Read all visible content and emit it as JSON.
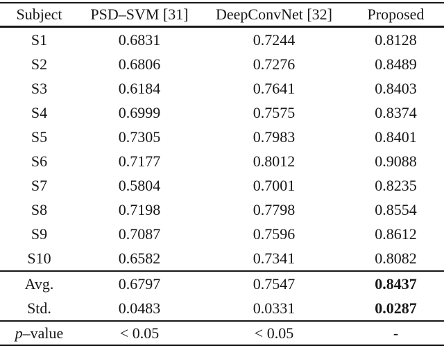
{
  "table": {
    "columns": [
      "Subject",
      "PSD–SVM [31]",
      "DeepConvNet [32]",
      "Proposed"
    ],
    "rows": [
      {
        "subject": "S1",
        "psd_svm": "0.6831",
        "deepconvnet": "0.7244",
        "proposed": "0.8128"
      },
      {
        "subject": "S2",
        "psd_svm": "0.6806",
        "deepconvnet": "0.7276",
        "proposed": "0.8489"
      },
      {
        "subject": "S3",
        "psd_svm": "0.6184",
        "deepconvnet": "0.7641",
        "proposed": "0.8403"
      },
      {
        "subject": "S4",
        "psd_svm": "0.6999",
        "deepconvnet": "0.7575",
        "proposed": "0.8374"
      },
      {
        "subject": "S5",
        "psd_svm": "0.7305",
        "deepconvnet": "0.7983",
        "proposed": "0.8401"
      },
      {
        "subject": "S6",
        "psd_svm": "0.7177",
        "deepconvnet": "0.8012",
        "proposed": "0.9088"
      },
      {
        "subject": "S7",
        "psd_svm": "0.5804",
        "deepconvnet": "0.7001",
        "proposed": "0.8235"
      },
      {
        "subject": "S8",
        "psd_svm": "0.7198",
        "deepconvnet": "0.7798",
        "proposed": "0.8554"
      },
      {
        "subject": "S9",
        "psd_svm": "0.7087",
        "deepconvnet": "0.7596",
        "proposed": "0.8612"
      },
      {
        "subject": "S10",
        "psd_svm": "0.6582",
        "deepconvnet": "0.7341",
        "proposed": "0.8082"
      }
    ],
    "summary": [
      {
        "label": "Avg.",
        "psd_svm": "0.6797",
        "deepconvnet": "0.7547",
        "proposed": "0.8437"
      },
      {
        "label": "Std.",
        "psd_svm": "0.0483",
        "deepconvnet": "0.0331",
        "proposed": "0.0287"
      }
    ],
    "pvalue": {
      "label_p": "p",
      "label_suffix": "–value",
      "psd_svm": "< 0.05",
      "deepconvnet": "< 0.05",
      "proposed": "-"
    },
    "text_color": "#161616",
    "background_color": "#ffffff"
  }
}
